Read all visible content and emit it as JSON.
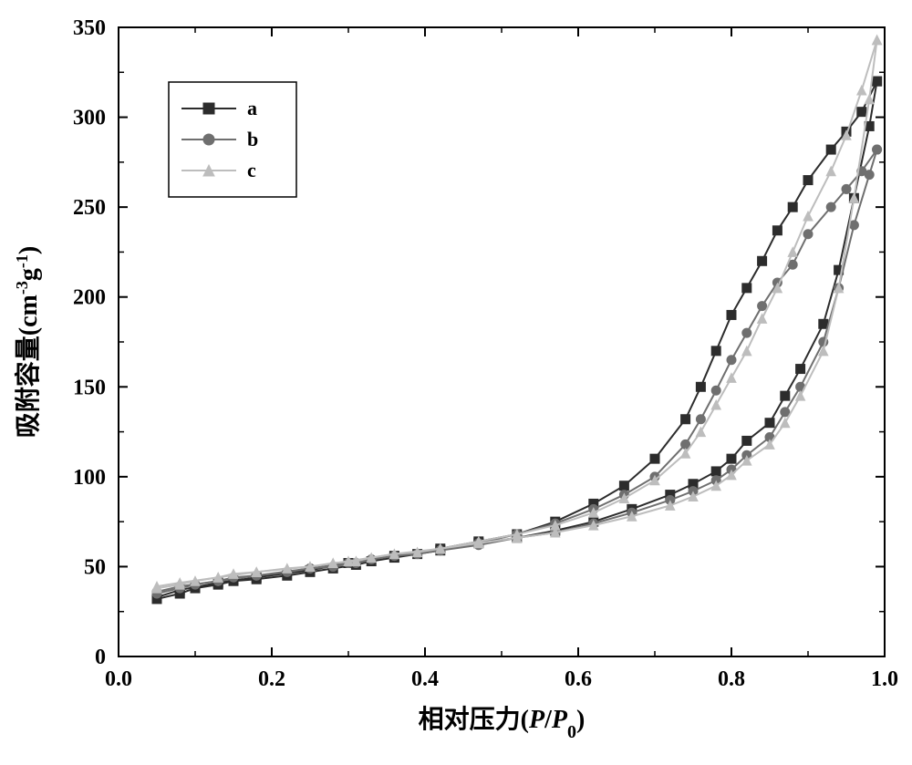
{
  "chart": {
    "type": "line",
    "background_color": "#ffffff",
    "plot_border_color": "#000000",
    "plot_border_width": 2,
    "axis": {
      "x": {
        "min": 0.0,
        "max": 1.0,
        "ticks": [
          0.0,
          0.2,
          0.4,
          0.6,
          0.8,
          1.0
        ],
        "tick_labels": [
          "0.0",
          "0.2",
          "0.4",
          "0.6",
          "0.8",
          "1.0"
        ],
        "minor_step": 0.1,
        "title": "相对压力(P/P₀)",
        "tick_fontsize": 24,
        "title_fontsize": 28,
        "tick_color": "#000000"
      },
      "y": {
        "min": 0,
        "max": 350,
        "ticks": [
          0,
          50,
          100,
          150,
          200,
          250,
          300,
          350
        ],
        "tick_labels": [
          "0",
          "50",
          "100",
          "150",
          "200",
          "250",
          "300",
          "350"
        ],
        "minor_step": 25,
        "title": "吸附容量(cm⁻³g⁻¹)",
        "tick_fontsize": 24,
        "title_fontsize": 28,
        "tick_color": "#000000"
      }
    },
    "legend": {
      "position": "top-left-inset",
      "border_color": "#000000",
      "background": "#ffffff",
      "fontsize": 22,
      "items": [
        {
          "label": "a",
          "marker": "square",
          "color": "#2c2c2c"
        },
        {
          "label": "b",
          "marker": "circle",
          "color": "#6f6f6f"
        },
        {
          "label": "c",
          "marker": "triangle",
          "color": "#bdbdbd"
        }
      ]
    },
    "line_width": 2,
    "marker_size": 10,
    "series": [
      {
        "name": "a",
        "color": "#2c2c2c",
        "marker": "square",
        "adsorption": {
          "x": [
            0.05,
            0.08,
            0.1,
            0.13,
            0.15,
            0.18,
            0.22,
            0.25,
            0.28,
            0.31,
            0.33,
            0.36,
            0.39,
            0.42,
            0.47,
            0.52,
            0.57,
            0.62,
            0.67,
            0.72,
            0.75,
            0.78,
            0.8,
            0.82,
            0.85,
            0.87,
            0.89,
            0.92,
            0.94,
            0.96,
            0.98,
            0.99
          ],
          "y": [
            32,
            35,
            38,
            40,
            42,
            43,
            45,
            47,
            49,
            51,
            53,
            55,
            57,
            59,
            63,
            66,
            70,
            75,
            82,
            90,
            96,
            103,
            110,
            120,
            130,
            145,
            160,
            185,
            215,
            255,
            295,
            320
          ]
        },
        "desorption": {
          "x": [
            0.99,
            0.97,
            0.95,
            0.93,
            0.9,
            0.88,
            0.86,
            0.84,
            0.82,
            0.8,
            0.78,
            0.76,
            0.74,
            0.7,
            0.66,
            0.62,
            0.57,
            0.52,
            0.47,
            0.42,
            0.36,
            0.3,
            0.25,
            0.18,
            0.13,
            0.08,
            0.05
          ],
          "y": [
            320,
            303,
            292,
            282,
            265,
            250,
            237,
            220,
            205,
            190,
            170,
            150,
            132,
            110,
            95,
            85,
            75,
            68,
            64,
            60,
            56,
            52,
            48,
            44,
            41,
            37,
            33
          ]
        }
      },
      {
        "name": "b",
        "color": "#6f6f6f",
        "marker": "circle",
        "adsorption": {
          "x": [
            0.05,
            0.08,
            0.1,
            0.13,
            0.15,
            0.18,
            0.22,
            0.25,
            0.28,
            0.31,
            0.33,
            0.36,
            0.39,
            0.42,
            0.47,
            0.52,
            0.57,
            0.62,
            0.67,
            0.72,
            0.75,
            0.78,
            0.8,
            0.82,
            0.85,
            0.87,
            0.89,
            0.92,
            0.94,
            0.96,
            0.98,
            0.99
          ],
          "y": [
            35,
            38,
            40,
            42,
            44,
            45,
            47,
            49,
            50,
            52,
            54,
            56,
            57,
            59,
            62,
            66,
            69,
            74,
            80,
            87,
            92,
            98,
            104,
            112,
            122,
            136,
            150,
            175,
            205,
            240,
            268,
            282
          ]
        },
        "desorption": {
          "x": [
            0.99,
            0.97,
            0.95,
            0.93,
            0.9,
            0.88,
            0.86,
            0.84,
            0.82,
            0.8,
            0.78,
            0.76,
            0.74,
            0.7,
            0.66,
            0.62,
            0.57,
            0.52,
            0.47,
            0.42,
            0.36,
            0.3,
            0.25,
            0.18,
            0.13,
            0.08,
            0.05
          ],
          "y": [
            282,
            270,
            260,
            250,
            235,
            218,
            208,
            195,
            180,
            165,
            148,
            132,
            118,
            100,
            90,
            82,
            74,
            68,
            63,
            59,
            56,
            52,
            49,
            45,
            42,
            39,
            36
          ]
        }
      },
      {
        "name": "c",
        "color": "#bdbdbd",
        "marker": "triangle",
        "adsorption": {
          "x": [
            0.05,
            0.08,
            0.1,
            0.13,
            0.15,
            0.18,
            0.22,
            0.25,
            0.28,
            0.31,
            0.33,
            0.36,
            0.39,
            0.42,
            0.47,
            0.52,
            0.57,
            0.62,
            0.67,
            0.72,
            0.75,
            0.78,
            0.8,
            0.82,
            0.85,
            0.87,
            0.89,
            0.92,
            0.94,
            0.96,
            0.98,
            0.99
          ],
          "y": [
            38,
            40,
            42,
            44,
            46,
            47,
            49,
            50,
            52,
            53,
            55,
            57,
            58,
            60,
            63,
            66,
            69,
            73,
            78,
            84,
            89,
            95,
            101,
            109,
            118,
            130,
            145,
            170,
            205,
            255,
            310,
            343
          ]
        },
        "desorption": {
          "x": [
            0.99,
            0.97,
            0.95,
            0.93,
            0.9,
            0.88,
            0.86,
            0.84,
            0.82,
            0.8,
            0.78,
            0.76,
            0.74,
            0.7,
            0.66,
            0.62,
            0.57,
            0.52,
            0.47,
            0.42,
            0.36,
            0.3,
            0.25,
            0.18,
            0.13,
            0.08,
            0.05
          ],
          "y": [
            343,
            315,
            290,
            270,
            245,
            225,
            205,
            188,
            170,
            155,
            140,
            125,
            113,
            98,
            88,
            80,
            73,
            68,
            64,
            60,
            57,
            53,
            50,
            47,
            44,
            41,
            39
          ]
        }
      }
    ]
  }
}
